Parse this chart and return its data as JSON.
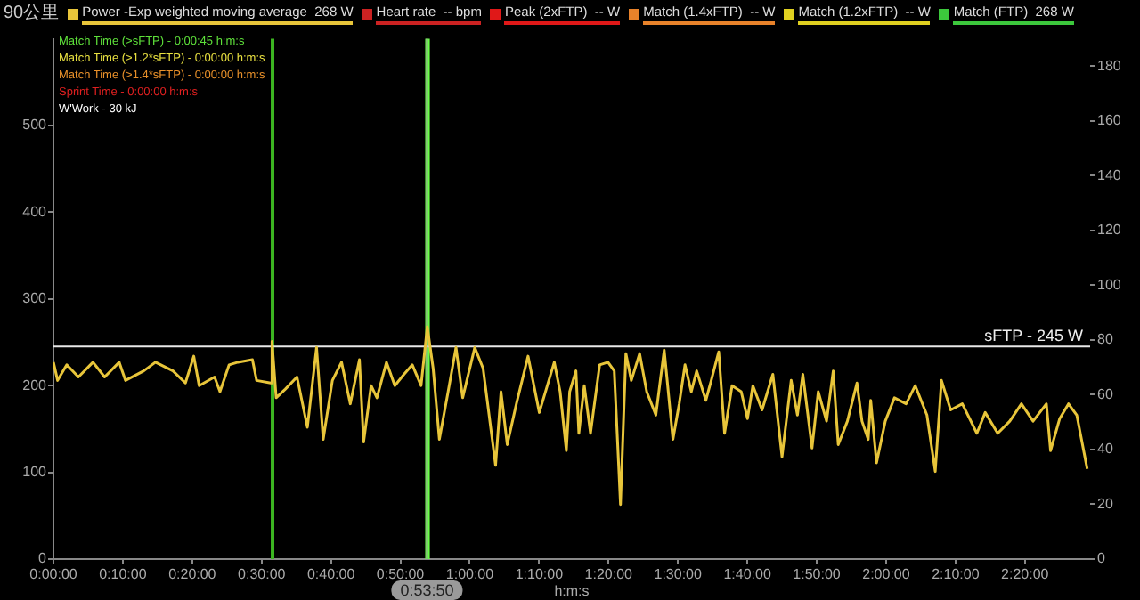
{
  "chart_data": {
    "type": "line",
    "title": "90公里",
    "xlabel": "h:m:s",
    "x": [
      0,
      0.01,
      0.032,
      0.06,
      0.095,
      0.123,
      0.158,
      0.173,
      0.217,
      0.245,
      0.287,
      0.317,
      0.337,
      0.35,
      0.387,
      0.4,
      0.422,
      0.443,
      0.478,
      0.488,
      0.522,
      0.525,
      0.535,
      0.557,
      0.585,
      0.61,
      0.632,
      0.648,
      0.67,
      0.692,
      0.713,
      0.735,
      0.745,
      0.763,
      0.777,
      0.8,
      0.82,
      0.842,
      0.862,
      0.883,
      0.898,
      0.912,
      0.927,
      0.948,
      0.967,
      0.983,
      1.012,
      1.032,
      1.062,
      1.075,
      1.09,
      1.112,
      1.14,
      1.167,
      1.203,
      1.217,
      1.232,
      1.24,
      1.255,
      1.262,
      1.275,
      1.29,
      1.312,
      1.332,
      1.347,
      1.362,
      1.375,
      1.388,
      1.408,
      1.425,
      1.447,
      1.467,
      1.488,
      1.503,
      1.517,
      1.532,
      1.545,
      1.567,
      1.58,
      1.598,
      1.612,
      1.63,
      1.652,
      1.667,
      1.68,
      1.702,
      1.728,
      1.75,
      1.772,
      1.787,
      1.8,
      1.822,
      1.837,
      1.857,
      1.873,
      1.885,
      1.907,
      1.93,
      1.942,
      1.957,
      1.963,
      1.977,
      1.998,
      2.02,
      2.048,
      2.07,
      2.098,
      2.118,
      2.133,
      2.155,
      2.183,
      2.218,
      2.238,
      2.268,
      2.297,
      2.325,
      2.353,
      2.385,
      2.395,
      2.417,
      2.438,
      2.458,
      2.483
    ],
    "series": [
      {
        "name": "Power -Exp weighted moving average  268 W",
        "color": "#e8c53a",
        "values": [
          227,
          206,
          224,
          210,
          227,
          210,
          227,
          206,
          217,
          227,
          217,
          203,
          234,
          200,
          210,
          193,
          224,
          227,
          230,
          206,
          203,
          251,
          186,
          196,
          210,
          152,
          244,
          138,
          206,
          227,
          179,
          230,
          135,
          200,
          186,
          227,
          200,
          213,
          224,
          200,
          268,
          220,
          138,
          193,
          244,
          186,
          244,
          220,
          108,
          193,
          132,
          179,
          234,
          169,
          227,
          193,
          125,
          193,
          217,
          145,
          200,
          145,
          224,
          227,
          217,
          63,
          237,
          206,
          237,
          193,
          166,
          241,
          138,
          179,
          224,
          193,
          217,
          183,
          206,
          239,
          145,
          200,
          193,
          162,
          200,
          172,
          213,
          118,
          206,
          166,
          213,
          128,
          193,
          159,
          217,
          132,
          159,
          203,
          159,
          138,
          183,
          111,
          159,
          186,
          179,
          200,
          166,
          101,
          206,
          172,
          179,
          145,
          169,
          145,
          159,
          179,
          159,
          179,
          125,
          162,
          179,
          166,
          104
        ]
      },
      {
        "name": "Heart rate  -- bpm",
        "color": "#cc2222",
        "values": [
          null,
          null,
          null,
          null,
          null,
          null,
          null,
          null,
          null,
          null,
          null,
          null,
          null,
          null,
          null,
          null,
          null,
          null,
          null,
          null,
          null,
          null,
          null,
          null,
          null,
          null,
          null,
          null,
          null,
          null,
          null,
          null,
          null,
          null,
          null,
          null,
          null,
          null,
          null,
          null,
          null,
          null,
          null,
          null,
          null,
          null,
          null,
          null,
          null,
          null,
          null,
          null,
          null,
          null,
          null,
          null,
          null,
          null,
          null,
          null,
          null,
          null,
          null,
          null,
          null,
          null,
          null,
          null,
          null,
          null,
          null,
          null,
          null,
          null,
          null,
          null,
          null,
          null,
          null,
          null,
          null,
          null,
          null,
          null,
          null,
          null,
          null,
          null,
          null,
          null,
          null,
          null,
          null,
          null,
          null,
          null,
          null,
          null,
          null,
          null,
          null,
          null,
          null,
          null,
          null,
          null,
          null,
          null,
          null,
          null,
          null,
          null,
          null,
          null,
          null,
          null,
          null,
          null,
          null,
          null,
          null,
          null,
          null
        ]
      },
      {
        "name": "Peak (2xFTP)  -- W",
        "color": "#e01818",
        "values": [
          null,
          null,
          null,
          null,
          null,
          null,
          null,
          null,
          null,
          null,
          null,
          null,
          null,
          null,
          null,
          null,
          null,
          null,
          null,
          null,
          null,
          null,
          null,
          null,
          null,
          null,
          null,
          null,
          null,
          null,
          null,
          null,
          null,
          null,
          null,
          null,
          null,
          null,
          null,
          null,
          null,
          null,
          null,
          null,
          null,
          null,
          null,
          null,
          null,
          null,
          null,
          null,
          null,
          null,
          null,
          null,
          null,
          null,
          null,
          null,
          null,
          null,
          null,
          null,
          null,
          null,
          null,
          null,
          null,
          null,
          null,
          null,
          null,
          null,
          null,
          null,
          null,
          null,
          null,
          null,
          null,
          null,
          null,
          null,
          null,
          null,
          null,
          null,
          null,
          null,
          null,
          null,
          null,
          null,
          null,
          null,
          null,
          null,
          null,
          null,
          null,
          null,
          null,
          null,
          null,
          null,
          null,
          null,
          null,
          null,
          null,
          null,
          null,
          null,
          null,
          null,
          null,
          null,
          null,
          null,
          null,
          null,
          null
        ]
      },
      {
        "name": "Match (1.4xFTP)  -- W",
        "color": "#e8822a",
        "values": [
          null,
          null,
          null,
          null,
          null,
          null,
          null,
          null,
          null,
          null,
          null,
          null,
          null,
          null,
          null,
          null,
          null,
          null,
          null,
          null,
          null,
          null,
          null,
          null,
          null,
          null,
          null,
          null,
          null,
          null,
          null,
          null,
          null,
          null,
          null,
          null,
          null,
          null,
          null,
          null,
          null,
          null,
          null,
          null,
          null,
          null,
          null,
          null,
          null,
          null,
          null,
          null,
          null,
          null,
          null,
          null,
          null,
          null,
          null,
          null,
          null,
          null,
          null,
          null,
          null,
          null,
          null,
          null,
          null,
          null,
          null,
          null,
          null,
          null,
          null,
          null,
          null,
          null,
          null,
          null,
          null,
          null,
          null,
          null,
          null,
          null,
          null,
          null,
          null,
          null,
          null,
          null,
          null,
          null,
          null,
          null,
          null,
          null,
          null,
          null,
          null,
          null,
          null,
          null,
          null,
          null,
          null,
          null,
          null,
          null,
          null,
          null,
          null,
          null,
          null,
          null,
          null,
          null,
          null,
          null,
          null,
          null,
          null
        ]
      },
      {
        "name": "Match (1.2xFTP)  -- W",
        "color": "#e0d020",
        "values": [
          null,
          null,
          null,
          null,
          null,
          null,
          null,
          null,
          null,
          null,
          null,
          null,
          null,
          null,
          null,
          null,
          null,
          null,
          null,
          null,
          null,
          null,
          null,
          null,
          null,
          null,
          null,
          null,
          null,
          null,
          null,
          null,
          null,
          null,
          null,
          null,
          null,
          null,
          null,
          null,
          null,
          null,
          null,
          null,
          null,
          null,
          null,
          null,
          null,
          null,
          null,
          null,
          null,
          null,
          null,
          null,
          null,
          null,
          null,
          null,
          null,
          null,
          null,
          null,
          null,
          null,
          null,
          null,
          null,
          null,
          null,
          null,
          null,
          null,
          null,
          null,
          null,
          null,
          null,
          null,
          null,
          null,
          null,
          null,
          null,
          null,
          null,
          null,
          null,
          null,
          null,
          null,
          null,
          null,
          null,
          null,
          null,
          null,
          null,
          null,
          null,
          null,
          null,
          null,
          null,
          null,
          null,
          null,
          null,
          null,
          null,
          null,
          null,
          null,
          null,
          null,
          null,
          null,
          null,
          null,
          null,
          null,
          null
        ]
      },
      {
        "name": "Match (FTP)  268 W",
        "color": "#3cc83c",
        "values": [
          null,
          null,
          null,
          null,
          null,
          null,
          null,
          null,
          null,
          null,
          null,
          null,
          null,
          null,
          null,
          null,
          null,
          null,
          null,
          null,
          null,
          null,
          null,
          null,
          null,
          null,
          null,
          null,
          null,
          null,
          null,
          null,
          null,
          null,
          null,
          null,
          null,
          null,
          null,
          null,
          null,
          null,
          null,
          null,
          null,
          null,
          null,
          null,
          null,
          null,
          null,
          null,
          null,
          null,
          null,
          null,
          null,
          null,
          null,
          null,
          null,
          null,
          null,
          null,
          null,
          null,
          null,
          null,
          null,
          null,
          null,
          null,
          null,
          null,
          null,
          null,
          null,
          null,
          null,
          null,
          null,
          null,
          null,
          null,
          null,
          null,
          null,
          null,
          null,
          null,
          null,
          null,
          null,
          null,
          null,
          null,
          null,
          null,
          null,
          null,
          null,
          null,
          null,
          null,
          null,
          null,
          null,
          null,
          null,
          null,
          null,
          null,
          null,
          null,
          null,
          null,
          null,
          null,
          null,
          null,
          null,
          null,
          null
        ]
      }
    ],
    "xlim": [
      0,
      2.49
    ],
    "xticks": [
      {
        "value": 0,
        "label": "0:00:00"
      },
      {
        "value": 0.16666667,
        "label": "0:10:00"
      },
      {
        "value": 0.33333333,
        "label": "0:20:00"
      },
      {
        "value": 0.5,
        "label": "0:30:00"
      },
      {
        "value": 0.66666667,
        "label": "0:40:00"
      },
      {
        "value": 0.83333333,
        "label": "0:50:00"
      },
      {
        "value": 1,
        "label": "1:00:00"
      },
      {
        "value": 1.16666667,
        "label": "1:10:00"
      },
      {
        "value": 1.33333333,
        "label": "1:20:00"
      },
      {
        "value": 1.5,
        "label": "1:30:00"
      },
      {
        "value": 1.66666667,
        "label": "1:40:00"
      },
      {
        "value": 1.83333333,
        "label": "1:50:00"
      },
      {
        "value": 2,
        "label": "2:00:00"
      },
      {
        "value": 2.16666667,
        "label": "2:10:00"
      },
      {
        "value": 2.33333333,
        "label": "2:20:00"
      }
    ],
    "ylim": [
      0,
      600
    ],
    "yticks": [
      0,
      100,
      200,
      300,
      400,
      500
    ],
    "y2lim": [
      0,
      190
    ],
    "y2ticks": [
      0,
      20,
      40,
      60,
      80,
      100,
      120,
      140,
      160,
      180
    ],
    "ref_lines": [
      {
        "axis": "y",
        "value": 245,
        "label": "sFTP - 245 W",
        "color": "#e8e8e8"
      },
      {
        "axis": "x",
        "value": 0.8972222222,
        "color": "#9a9a9a"
      }
    ],
    "bands": [
      {
        "axis": "x",
        "from": 0.522,
        "to": 0.526,
        "color": "#3cb521"
      },
      {
        "axis": "x",
        "from": 0.893,
        "to": 0.904,
        "color": "#66ff44"
      }
    ],
    "annotations": [
      "Match Time (>sFTP) - 0:00:45 h:m:s",
      "Match Time (>1.2*sFTP) - 0:00:00 h:m:s",
      "Match Time (>1.4*sFTP) - 0:00:00 h:m:s",
      "Sprint Time - 0:00:00 h:m:s",
      "W'Work - 30 kJ",
      {
        "text": "0:53:50",
        "x": 0.8972222222,
        "y": 0
      }
    ],
    "legend": "top",
    "grid": false,
    "marker": "none",
    "line_style": "solid"
  }
}
